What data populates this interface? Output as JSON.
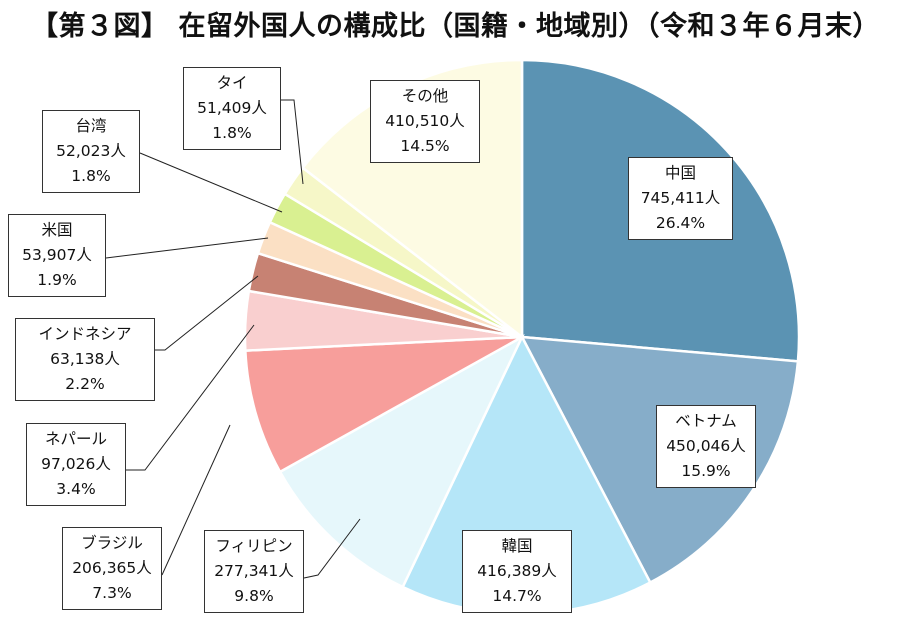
{
  "title": "【第３図】 在留外国人の構成比（国籍・地域別）（令和３年６月末）",
  "chart_data": {
    "type": "pie",
    "title": "【第３図】 在留外国人の構成比（国籍・地域別）（令和３年６月末）",
    "unit": "人",
    "slices": [
      {
        "name": "中国",
        "value": 745411,
        "value_label": "745,411人",
        "percent": "26.4%",
        "color": "#5b93b3"
      },
      {
        "name": "ベトナム",
        "value": 450046,
        "value_label": "450,046人",
        "percent": "15.9%",
        "color": "#86adc9"
      },
      {
        "name": "韓国",
        "value": 416389,
        "value_label": "416,389人",
        "percent": "14.7%",
        "color": "#b5e6f8"
      },
      {
        "name": "フィリピン",
        "value": 277341,
        "value_label": "277,341人",
        "percent": "9.8%",
        "color": "#e6f7fb"
      },
      {
        "name": "ブラジル",
        "value": 206365,
        "value_label": "206,365人",
        "percent": "7.3%",
        "color": "#f79e9b"
      },
      {
        "name": "ネパール",
        "value": 97026,
        "value_label": "97,026人",
        "percent": "3.4%",
        "color": "#f9cfcf"
      },
      {
        "name": "インドネシア",
        "value": 63138,
        "value_label": "63,138人",
        "percent": "2.2%",
        "color": "#c78273"
      },
      {
        "name": "米国",
        "value": 53907,
        "value_label": "53,907人",
        "percent": "1.9%",
        "color": "#fbe0c4"
      },
      {
        "name": "台湾",
        "value": 52023,
        "value_label": "52,023人",
        "percent": "1.8%",
        "color": "#d9f091"
      },
      {
        "name": "タイ",
        "value": 51409,
        "value_label": "51,409人",
        "percent": "1.8%",
        "color": "#f6f7c8"
      },
      {
        "name": "その他",
        "value": 410510,
        "value_label": "410,510人",
        "percent": "14.5%",
        "color": "#fdfbe3"
      }
    ]
  }
}
